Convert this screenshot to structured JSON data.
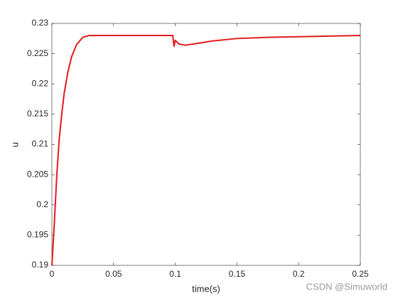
{
  "chart_data": {
    "type": "line",
    "xlabel": "time(s)",
    "ylabel": "u",
    "x": [
      0,
      0.002,
      0.004,
      0.006,
      0.008,
      0.01,
      0.013,
      0.016,
      0.02,
      0.025,
      0.03,
      0.05,
      0.098,
      0.099,
      0.1,
      0.103,
      0.108,
      0.115,
      0.13,
      0.15,
      0.175,
      0.2,
      0.25
    ],
    "series": [
      {
        "color": "#e31a1c",
        "values": [
          0.19,
          0.197,
          0.205,
          0.211,
          0.215,
          0.2185,
          0.222,
          0.2245,
          0.2265,
          0.2277,
          0.228,
          0.228,
          0.228,
          0.2262,
          0.2272,
          0.2266,
          0.2264,
          0.2266,
          0.2271,
          0.2275,
          0.2277,
          0.2278,
          0.228
        ]
      }
    ],
    "xlim": [
      0,
      0.25
    ],
    "xticks": [
      0,
      0.05,
      0.1,
      0.15,
      0.2,
      0.25
    ],
    "ylim": [
      0.19,
      0.23
    ],
    "yticks": [
      0.19,
      0.195,
      0.2,
      0.205,
      0.21,
      0.215,
      0.22,
      0.225,
      0.23
    ],
    "grid": false,
    "watermark": "CSDN @Simuworld"
  }
}
